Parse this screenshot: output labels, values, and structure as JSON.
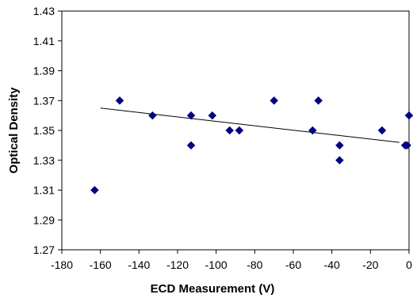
{
  "chart_data": {
    "type": "scatter",
    "xlabel": "ECD Measurement (V)",
    "ylabel": "Optical Density",
    "xlim": [
      -180,
      0
    ],
    "ylim": [
      1.27,
      1.43
    ],
    "xticks": [
      -180,
      -160,
      -140,
      -120,
      -100,
      -80,
      -60,
      -40,
      -20,
      0
    ],
    "yticks": [
      1.27,
      1.29,
      1.31,
      1.33,
      1.35,
      1.37,
      1.39,
      1.41,
      1.43
    ],
    "xtick_labels": [
      "-180",
      "-160",
      "-140",
      "-120",
      "-100",
      "-80",
      "-60",
      "-40",
      "-20",
      "0"
    ],
    "ytick_labels": [
      "1.27",
      "1.29",
      "1.31",
      "1.33",
      "1.35",
      "1.37",
      "1.39",
      "1.41",
      "1.43"
    ],
    "grid": "none",
    "marker": "diamond",
    "marker_color": "#000080",
    "points": [
      {
        "x": -163,
        "y": 1.31
      },
      {
        "x": -150,
        "y": 1.37
      },
      {
        "x": -133,
        "y": 1.36
      },
      {
        "x": -113,
        "y": 1.36
      },
      {
        "x": -113,
        "y": 1.34
      },
      {
        "x": -102,
        "y": 1.36
      },
      {
        "x": -93,
        "y": 1.35
      },
      {
        "x": -88,
        "y": 1.35
      },
      {
        "x": -70,
        "y": 1.37
      },
      {
        "x": -50,
        "y": 1.35
      },
      {
        "x": -47,
        "y": 1.37
      },
      {
        "x": -36,
        "y": 1.34
      },
      {
        "x": -36,
        "y": 1.33
      },
      {
        "x": -14,
        "y": 1.35
      },
      {
        "x": -2,
        "y": 1.34
      },
      {
        "x": -1,
        "y": 1.34
      },
      {
        "x": 0,
        "y": 1.36
      }
    ],
    "trendline": {
      "x": [
        -160,
        -5
      ],
      "y": [
        1.365,
        1.342
      ],
      "color": "#000000"
    }
  }
}
